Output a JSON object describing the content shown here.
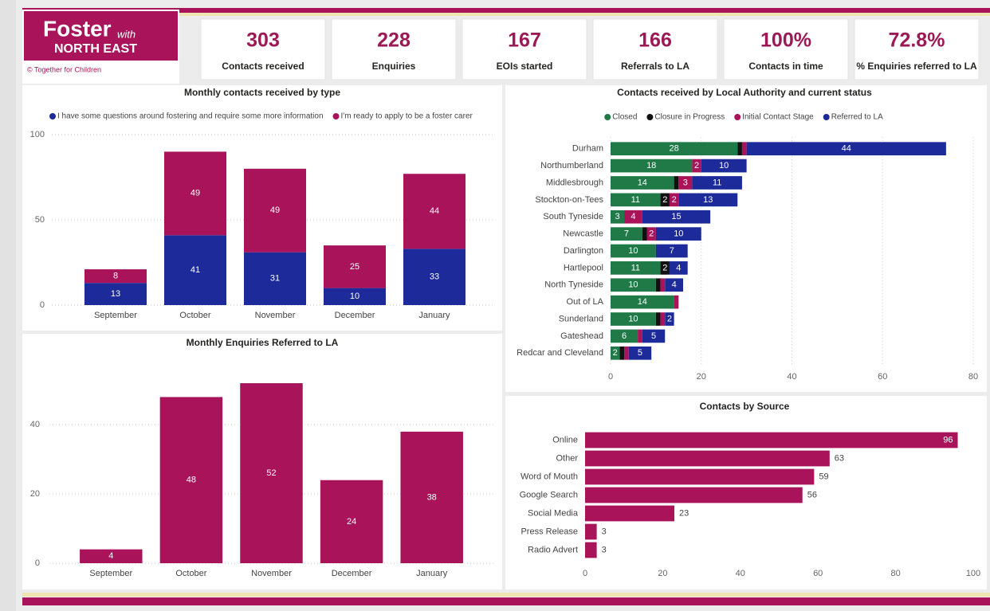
{
  "header": {
    "logo": {
      "foster": "Foster",
      "with": "with",
      "region": "NORTH EAST",
      "credit": "© Together for Children"
    }
  },
  "kpis": [
    {
      "value": "303",
      "label": "Contacts received"
    },
    {
      "value": "228",
      "label": "Enquiries"
    },
    {
      "value": "167",
      "label": "EOIs started"
    },
    {
      "value": "166",
      "label": "Referrals to LA"
    },
    {
      "value": "100%",
      "label": "Contacts in time"
    },
    {
      "value": "72.8%",
      "label": "% Enquiries referred to LA"
    }
  ],
  "chart_data": [
    {
      "type": "bar",
      "stacked": true,
      "orientation": "vertical",
      "title": "Monthly contacts received by type",
      "categories": [
        "September",
        "October",
        "November",
        "December",
        "January"
      ],
      "series": [
        {
          "name": "I have some questions around fostering and require some more information",
          "color": "#1c2a9a",
          "values": [
            13,
            41,
            31,
            10,
            33
          ]
        },
        {
          "name": "I'm ready to apply to be a foster carer",
          "color": "#a8135a",
          "values": [
            8,
            49,
            49,
            25,
            44
          ]
        }
      ],
      "ylim": [
        0,
        100
      ],
      "yticks": [
        0,
        50,
        100
      ],
      "grid": true,
      "legend": "top"
    },
    {
      "type": "bar",
      "stacked": false,
      "orientation": "vertical",
      "title": "Monthly Enquiries Referred to LA",
      "categories": [
        "September",
        "October",
        "November",
        "December",
        "January"
      ],
      "color": "#a8135a",
      "values": [
        4,
        48,
        52,
        24,
        38
      ],
      "ylim": [
        0,
        55
      ],
      "yticks": [
        0,
        20,
        40
      ],
      "grid": true
    },
    {
      "type": "bar",
      "stacked": true,
      "orientation": "horizontal",
      "title": "Contacts received by Local Authority and current status",
      "categories": [
        "Durham",
        "Northumberland",
        "Middlesbrough",
        "Stockton-on-Tees",
        "South Tyneside",
        "Newcastle",
        "Darlington",
        "Hartlepool",
        "North Tyneside",
        "Out of LA",
        "Sunderland",
        "Gateshead",
        "Redcar and Cleveland"
      ],
      "series": [
        {
          "name": "Closed",
          "color": "#1f7a48",
          "values": [
            28,
            18,
            14,
            11,
            3,
            7,
            10,
            11,
            10,
            14,
            10,
            6,
            2
          ]
        },
        {
          "name": "Closure in Progress",
          "color": "#111111",
          "values": [
            1,
            0,
            1,
            2,
            0,
            1,
            0,
            2,
            1,
            0,
            1,
            0,
            1
          ]
        },
        {
          "name": "Initial Contact Stage",
          "color": "#a8135a",
          "values": [
            1,
            2,
            3,
            2,
            4,
            2,
            0,
            0,
            1,
            1,
            1,
            1,
            1
          ]
        },
        {
          "name": "Referred to LA",
          "color": "#1c2a9a",
          "values": [
            44,
            10,
            11,
            13,
            15,
            10,
            7,
            4,
            4,
            0,
            2,
            5,
            5
          ]
        }
      ],
      "xlim": [
        0,
        80
      ],
      "xticks": [
        0,
        20,
        40,
        60,
        80
      ],
      "grid": true,
      "legend": "top"
    },
    {
      "type": "bar",
      "stacked": false,
      "orientation": "horizontal",
      "title": "Contacts by Source",
      "categories": [
        "Online",
        "Other",
        "Word of Mouth",
        "Google Search",
        "Social Media",
        "Press Release",
        "Radio Advert"
      ],
      "color": "#a8135a",
      "values": [
        96,
        63,
        59,
        56,
        23,
        3,
        3
      ],
      "xlim": [
        0,
        100
      ],
      "xticks": [
        0,
        20,
        40,
        60,
        80,
        100
      ],
      "grid": false
    }
  ]
}
